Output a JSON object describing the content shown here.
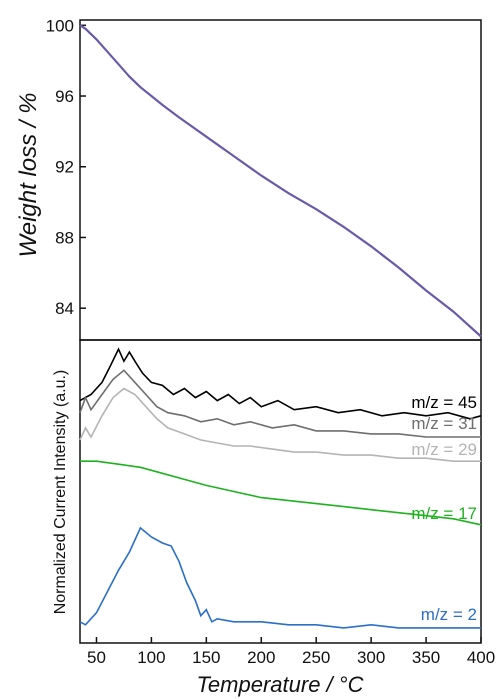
{
  "chart_data": [
    {
      "type": "line",
      "ylabel": "Weight loss / %",
      "xlim": [
        35,
        400
      ],
      "ylim": [
        82.2,
        100.3
      ],
      "yticks": [
        "84",
        "88",
        "92",
        "96",
        "100"
      ],
      "colors": {
        "line": "#6a5aa8"
      },
      "series": [
        {
          "x": [
            35,
            40,
            50,
            60,
            70,
            80,
            90,
            100,
            110,
            125,
            150,
            175,
            200,
            225,
            250,
            275,
            300,
            325,
            350,
            375,
            400
          ],
          "values": [
            100,
            99.8,
            99.2,
            98.5,
            97.8,
            97.1,
            96.5,
            96.0,
            95.5,
            94.8,
            93.7,
            92.6,
            91.5,
            90.5,
            89.6,
            88.6,
            87.5,
            86.3,
            85.0,
            83.8,
            82.4
          ]
        }
      ]
    },
    {
      "type": "line",
      "xlabel": "Temperature / °C",
      "ylabel": "Normalized Current Intensity (a.u.)",
      "xlim": [
        35,
        400
      ],
      "xticks": [
        "50",
        "100",
        "150",
        "200",
        "250",
        "300",
        "350",
        "400"
      ],
      "series": [
        {
          "name": "m/z = 45",
          "color": "#000000",
          "x": [
            35,
            45,
            55,
            62,
            70,
            75,
            80,
            85,
            92,
            100,
            110,
            120,
            130,
            140,
            150,
            160,
            170,
            180,
            190,
            200,
            215,
            230,
            250,
            270,
            290,
            310,
            330,
            350,
            370,
            390,
            400
          ],
          "values": [
            0.8,
            0.82,
            0.86,
            0.91,
            0.97,
            0.93,
            0.96,
            0.93,
            0.89,
            0.86,
            0.85,
            0.82,
            0.84,
            0.81,
            0.83,
            0.8,
            0.82,
            0.79,
            0.81,
            0.78,
            0.8,
            0.77,
            0.78,
            0.76,
            0.77,
            0.75,
            0.76,
            0.75,
            0.76,
            0.74,
            0.75
          ]
        },
        {
          "name": "m/z = 31",
          "color": "#6e6e6e",
          "x": [
            35,
            40,
            45,
            55,
            65,
            75,
            85,
            95,
            105,
            115,
            130,
            145,
            160,
            175,
            190,
            210,
            230,
            250,
            275,
            300,
            325,
            350,
            375,
            400
          ],
          "values": [
            0.76,
            0.81,
            0.77,
            0.82,
            0.87,
            0.9,
            0.86,
            0.82,
            0.78,
            0.76,
            0.75,
            0.73,
            0.74,
            0.72,
            0.73,
            0.71,
            0.72,
            0.7,
            0.7,
            0.69,
            0.69,
            0.68,
            0.68,
            0.68
          ]
        },
        {
          "name": "m/z = 29",
          "color": "#b4b4b4",
          "x": [
            35,
            40,
            45,
            55,
            65,
            75,
            85,
            95,
            105,
            115,
            130,
            145,
            160,
            175,
            190,
            210,
            230,
            250,
            275,
            300,
            325,
            350,
            375,
            400
          ],
          "values": [
            0.67,
            0.71,
            0.68,
            0.75,
            0.81,
            0.84,
            0.82,
            0.78,
            0.74,
            0.71,
            0.69,
            0.67,
            0.66,
            0.65,
            0.65,
            0.64,
            0.63,
            0.63,
            0.62,
            0.62,
            0.61,
            0.61,
            0.6,
            0.6
          ]
        },
        {
          "name": "m/z = 17",
          "color": "#1fb21f",
          "x": [
            35,
            50,
            70,
            90,
            110,
            130,
            150,
            175,
            200,
            225,
            250,
            275,
            300,
            325,
            350,
            375,
            400
          ],
          "values": [
            0.6,
            0.6,
            0.59,
            0.58,
            0.56,
            0.54,
            0.52,
            0.5,
            0.48,
            0.47,
            0.46,
            0.45,
            0.44,
            0.43,
            0.42,
            0.41,
            0.39
          ]
        },
        {
          "name": "m/z = 2",
          "color": "#2a6fc9",
          "x": [
            35,
            40,
            50,
            60,
            70,
            80,
            90,
            100,
            110,
            118,
            125,
            132,
            140,
            145,
            150,
            155,
            160,
            175,
            200,
            225,
            250,
            275,
            300,
            325,
            350,
            375,
            400
          ],
          "values": [
            0.07,
            0.06,
            0.1,
            0.17,
            0.24,
            0.3,
            0.38,
            0.35,
            0.33,
            0.32,
            0.27,
            0.2,
            0.14,
            0.09,
            0.11,
            0.07,
            0.08,
            0.07,
            0.07,
            0.06,
            0.06,
            0.05,
            0.06,
            0.05,
            0.05,
            0.05,
            0.05
          ]
        }
      ]
    }
  ]
}
